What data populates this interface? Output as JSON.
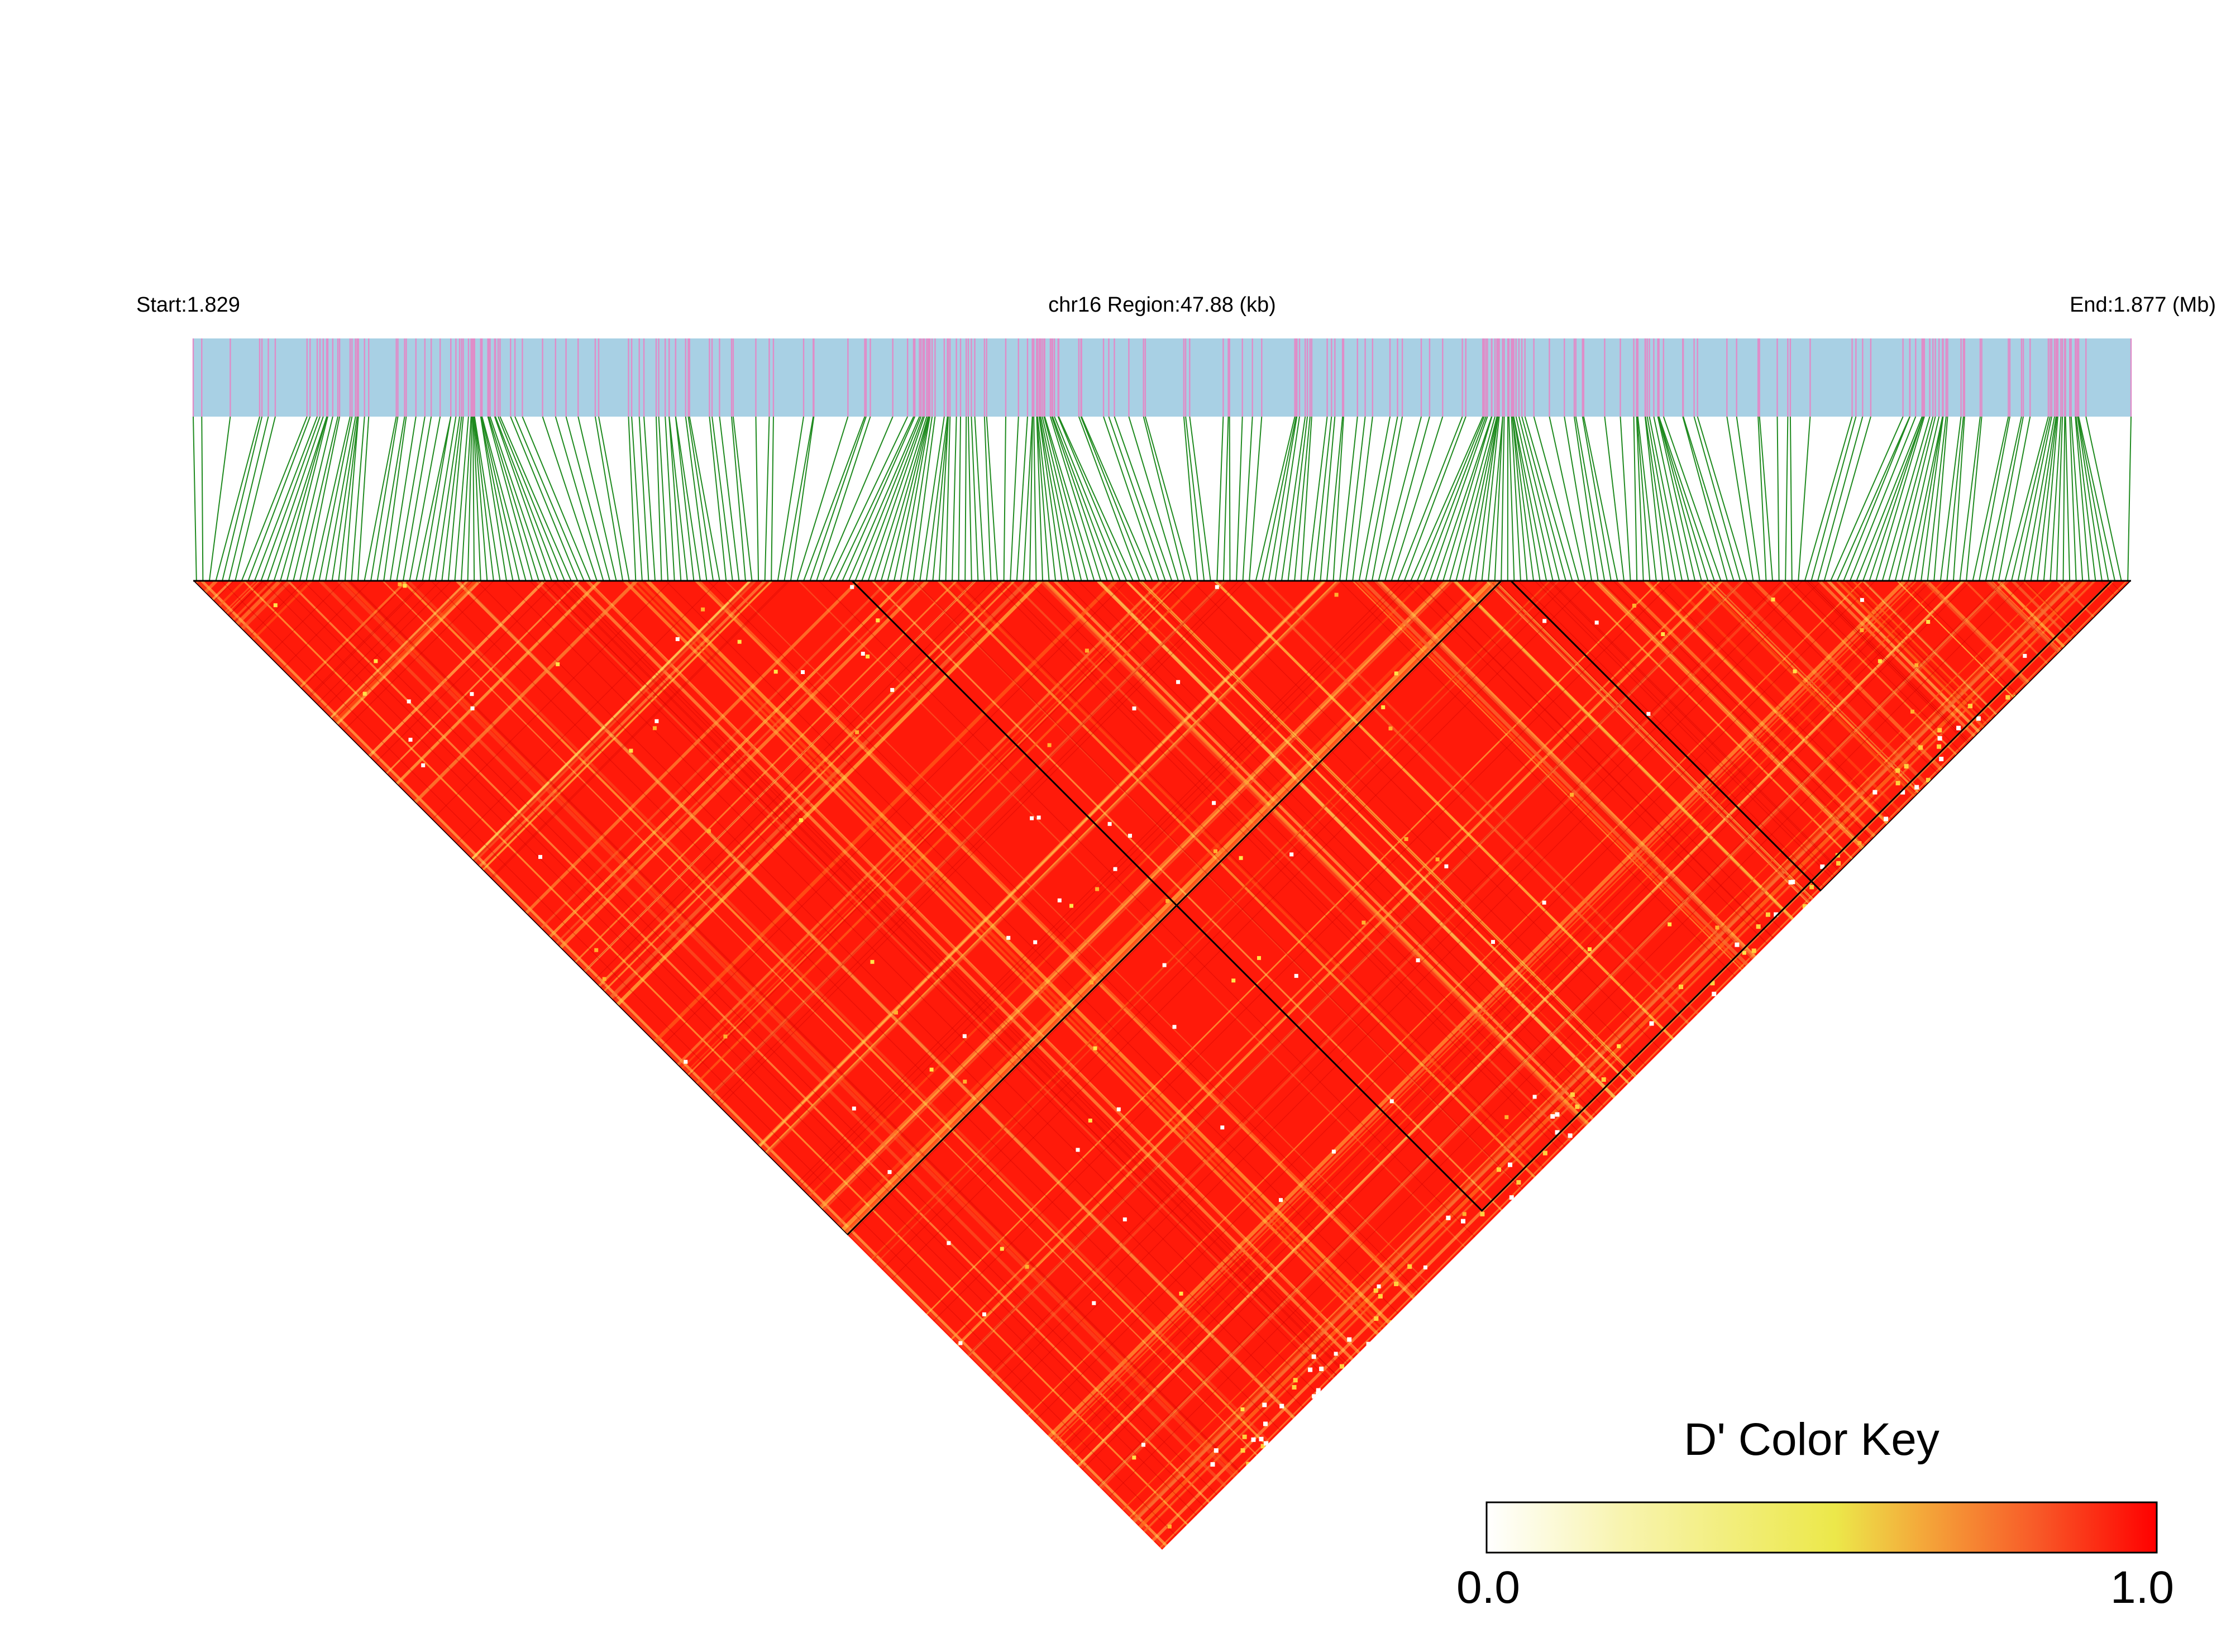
{
  "chart_data": {
    "type": "heatmap",
    "subtype": "linkage-disequilibrium-triangle",
    "header": {
      "start_label": "Start:1.829",
      "region_label": "chr16 Region:47.88 (kb)",
      "end_label": "End:1.877 (Mb)"
    },
    "chromosome": "chr16",
    "region_start_mb": 1.829,
    "region_end_mb": 1.877,
    "region_length_kb": 47.88,
    "measure": "D'",
    "value_range": [
      0.0,
      1.0
    ],
    "dominant_value": 1.0,
    "ld_blocks": [
      {
        "start_fraction": 0.0,
        "end_fraction": 0.675
      },
      {
        "start_fraction": 0.34,
        "end_fraction": 0.99
      },
      {
        "start_fraction": 0.68,
        "end_fraction": 1.0
      }
    ],
    "track_colors": {
      "snp_bar_background": "#a8d0e4",
      "snp_marker": "#e08cc8",
      "connector_lines": "#1f8a1f",
      "block_border": "#000000"
    },
    "color_key": {
      "title": "D' Color Key",
      "min_label": "0.0",
      "max_label": "1.0",
      "stops": [
        "#ffffff",
        "#f8f4b0",
        "#ece84a",
        "#f4a83a",
        "#f85a28",
        "#ff0000"
      ]
    }
  }
}
